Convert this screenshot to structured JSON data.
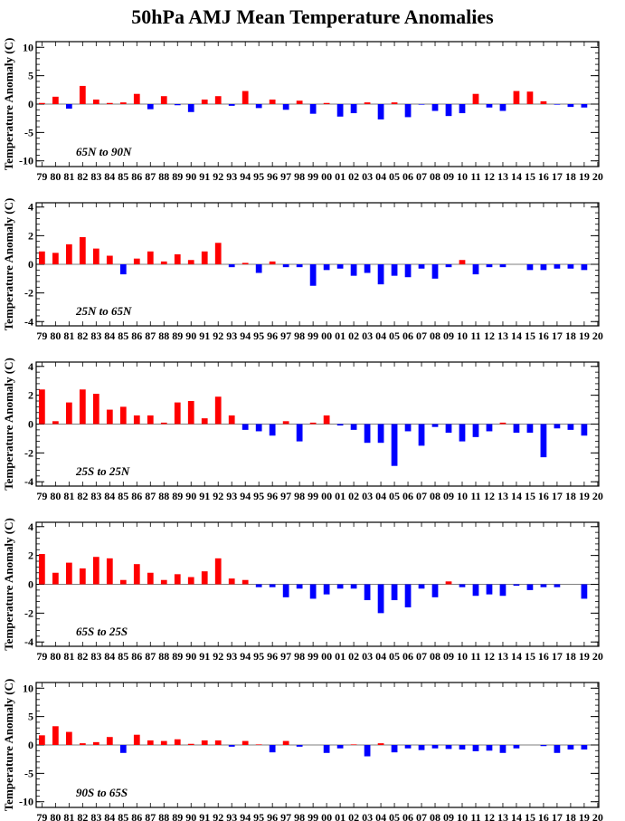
{
  "title": "50hPa AMJ Mean Temperature Anomalies",
  "colors": {
    "positive": "#ff0000",
    "negative": "#0000ff"
  },
  "chart_data": [
    {
      "type": "bar",
      "region": "65N to 90N",
      "ylabel": "Temperature Anomaly (C)",
      "ylim": [
        -11,
        11
      ],
      "yticks": [
        -10,
        -5,
        0,
        5,
        10
      ],
      "categories": [
        "79",
        "80",
        "81",
        "82",
        "83",
        "84",
        "85",
        "86",
        "87",
        "88",
        "89",
        "90",
        "91",
        "92",
        "93",
        "94",
        "95",
        "96",
        "97",
        "98",
        "99",
        "00",
        "01",
        "02",
        "03",
        "04",
        "05",
        "06",
        "07",
        "08",
        "09",
        "10",
        "11",
        "12",
        "13",
        "14",
        "15",
        "16",
        "17",
        "18",
        "19",
        "20"
      ],
      "values": [
        0.2,
        1.3,
        -0.8,
        3.2,
        0.8,
        0.2,
        0.3,
        1.8,
        -0.9,
        1.4,
        -0.2,
        -1.4,
        0.8,
        1.4,
        -0.3,
        2.3,
        -0.7,
        0.8,
        -1.0,
        0.6,
        -1.7,
        0.2,
        -2.2,
        -1.6,
        0.3,
        -2.7,
        0.3,
        -2.3,
        -0.1,
        -1.2,
        -2.1,
        -1.6,
        1.8,
        -0.6,
        -1.2,
        2.3,
        2.2,
        0.5,
        -0.1,
        -0.5,
        -0.6,
        0.0
      ]
    },
    {
      "type": "bar",
      "region": "25N to 65N",
      "ylabel": "Temperature Anomaly (C)",
      "ylim": [
        -4.3,
        4.3
      ],
      "yticks": [
        -4,
        -2,
        0,
        2,
        4
      ],
      "categories": [
        "79",
        "80",
        "81",
        "82",
        "83",
        "84",
        "85",
        "86",
        "87",
        "88",
        "89",
        "90",
        "91",
        "92",
        "93",
        "94",
        "95",
        "96",
        "97",
        "98",
        "99",
        "00",
        "01",
        "02",
        "03",
        "04",
        "05",
        "06",
        "07",
        "08",
        "09",
        "10",
        "11",
        "12",
        "13",
        "14",
        "15",
        "16",
        "17",
        "18",
        "19",
        "20"
      ],
      "values": [
        0.9,
        0.8,
        1.4,
        1.9,
        1.1,
        0.6,
        -0.7,
        0.4,
        0.9,
        0.2,
        0.7,
        0.3,
        0.9,
        1.5,
        -0.2,
        0.1,
        -0.6,
        0.2,
        -0.2,
        -0.2,
        -1.5,
        -0.4,
        -0.3,
        -0.8,
        -0.6,
        -1.4,
        -0.8,
        -0.9,
        -0.3,
        -1.0,
        -0.2,
        0.3,
        -0.7,
        -0.2,
        -0.2,
        0.0,
        -0.4,
        -0.4,
        -0.3,
        -0.3,
        -0.4,
        0.0
      ]
    },
    {
      "type": "bar",
      "region": "25S to 25N",
      "ylabel": "Temperature Anomaly (C)",
      "ylim": [
        -4.3,
        4.3
      ],
      "yticks": [
        -4,
        -2,
        0,
        2,
        4
      ],
      "categories": [
        "79",
        "80",
        "81",
        "82",
        "83",
        "84",
        "85",
        "86",
        "87",
        "88",
        "89",
        "90",
        "91",
        "92",
        "93",
        "94",
        "95",
        "96",
        "97",
        "98",
        "99",
        "00",
        "01",
        "02",
        "03",
        "04",
        "05",
        "06",
        "07",
        "08",
        "09",
        "10",
        "11",
        "12",
        "13",
        "14",
        "15",
        "16",
        "17",
        "18",
        "19",
        "20"
      ],
      "values": [
        2.4,
        0.2,
        1.5,
        2.4,
        2.1,
        1.0,
        1.2,
        0.6,
        0.6,
        0.1,
        1.5,
        1.6,
        0.4,
        1.9,
        0.6,
        -0.4,
        -0.5,
        -0.8,
        0.2,
        -1.2,
        0.1,
        0.6,
        -0.1,
        -0.4,
        -1.3,
        -1.3,
        -2.9,
        -0.5,
        -1.5,
        -0.2,
        -0.6,
        -1.2,
        -0.9,
        -0.5,
        0.1,
        -0.6,
        -0.6,
        -2.3,
        -0.3,
        -0.4,
        -0.8,
        0.0
      ]
    },
    {
      "type": "bar",
      "region": "65S to 25S",
      "ylabel": "Temperature Anomaly (C)",
      "ylim": [
        -4.3,
        4.3
      ],
      "yticks": [
        -4,
        -2,
        0,
        2,
        4
      ],
      "categories": [
        "79",
        "80",
        "81",
        "82",
        "83",
        "84",
        "85",
        "86",
        "87",
        "88",
        "89",
        "90",
        "91",
        "92",
        "93",
        "94",
        "95",
        "96",
        "97",
        "98",
        "99",
        "00",
        "01",
        "02",
        "03",
        "04",
        "05",
        "06",
        "07",
        "08",
        "09",
        "10",
        "11",
        "12",
        "13",
        "14",
        "15",
        "16",
        "17",
        "18",
        "19",
        "20"
      ],
      "values": [
        2.1,
        0.8,
        1.5,
        1.1,
        1.9,
        1.8,
        0.3,
        1.4,
        0.8,
        0.3,
        0.7,
        0.5,
        0.9,
        1.8,
        0.4,
        0.3,
        -0.2,
        -0.2,
        -0.9,
        -0.3,
        -1.0,
        -0.7,
        -0.3,
        -0.3,
        -1.1,
        -2.0,
        -1.1,
        -1.6,
        -0.3,
        -0.9,
        0.2,
        -0.2,
        -0.8,
        -0.7,
        -0.8,
        -0.1,
        -0.4,
        -0.2,
        -0.2,
        0.0,
        -1.0,
        0.0
      ]
    },
    {
      "type": "bar",
      "region": "90S to 65S",
      "ylabel": "Temperature Anomaly (C)",
      "ylim": [
        -11,
        11
      ],
      "yticks": [
        -10,
        -5,
        0,
        5,
        10
      ],
      "categories": [
        "79",
        "80",
        "81",
        "82",
        "83",
        "84",
        "85",
        "86",
        "87",
        "88",
        "89",
        "90",
        "91",
        "92",
        "93",
        "94",
        "95",
        "96",
        "97",
        "98",
        "99",
        "00",
        "01",
        "02",
        "03",
        "04",
        "05",
        "06",
        "07",
        "08",
        "09",
        "10",
        "11",
        "12",
        "13",
        "14",
        "15",
        "16",
        "17",
        "18",
        "19",
        "20"
      ],
      "values": [
        1.7,
        3.3,
        2.3,
        0.3,
        0.5,
        1.4,
        -1.4,
        1.8,
        0.8,
        0.7,
        1.0,
        0.2,
        0.8,
        0.8,
        -0.3,
        0.7,
        0.1,
        -1.3,
        0.7,
        -0.3,
        0.0,
        -1.4,
        -0.6,
        0.1,
        -2.0,
        0.3,
        -1.3,
        -0.6,
        -0.9,
        -0.6,
        -0.7,
        -0.8,
        -1.1,
        -1.0,
        -1.4,
        -0.6,
        0.0,
        -0.2,
        -1.4,
        -0.8,
        -0.8,
        0.0
      ]
    }
  ]
}
